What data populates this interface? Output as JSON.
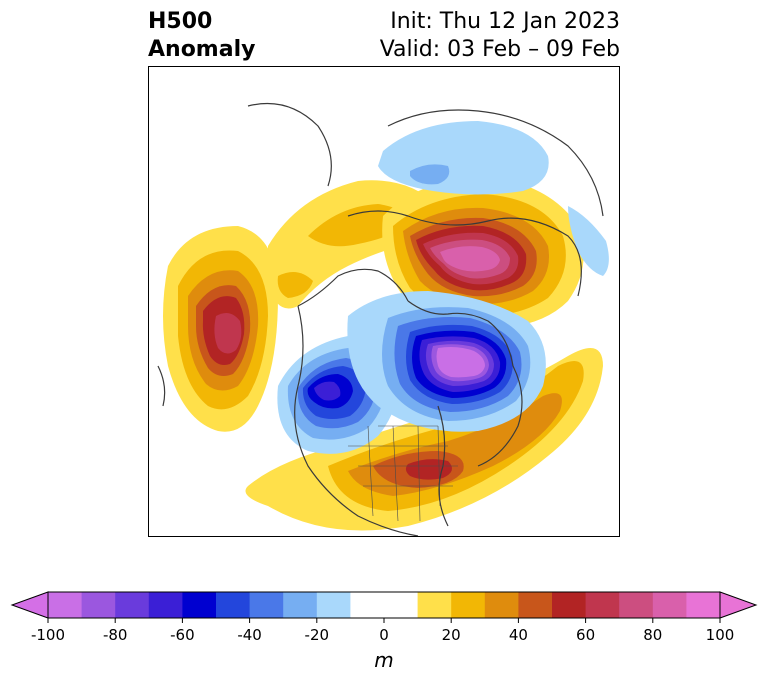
{
  "header": {
    "title_line1": "H500",
    "title_line2": "Anomaly",
    "init_label": "Init: Thu 12 Jan 2023",
    "valid_label": "Valid: 03 Feb – 09 Feb"
  },
  "colorbar": {
    "unit": "m",
    "min": -100,
    "max": 100,
    "ticks": [
      "-100",
      "-80",
      "-60",
      "-40",
      "-20",
      "0",
      "20",
      "40",
      "60",
      "80",
      "100"
    ],
    "tick_values": [
      -100,
      -80,
      -60,
      -40,
      -20,
      0,
      20,
      40,
      60,
      80,
      100
    ],
    "bins": [
      {
        "from": -100,
        "to": -90,
        "color": "#c96fe6"
      },
      {
        "from": -90,
        "to": -80,
        "color": "#9b57df"
      },
      {
        "from": -80,
        "to": -70,
        "color": "#6a3bdc"
      },
      {
        "from": -70,
        "to": -60,
        "color": "#3b1fd6"
      },
      {
        "from": -60,
        "to": -50,
        "color": "#0000d0"
      },
      {
        "from": -50,
        "to": -40,
        "color": "#2346dc"
      },
      {
        "from": -40,
        "to": -30,
        "color": "#4a78e8"
      },
      {
        "from": -30,
        "to": -20,
        "color": "#76aef2"
      },
      {
        "from": -20,
        "to": -10,
        "color": "#a9d8fb"
      },
      {
        "from": -10,
        "to": 10,
        "color": "#ffffff"
      },
      {
        "from": 10,
        "to": 20,
        "color": "#ffe04a"
      },
      {
        "from": 20,
        "to": 30,
        "color": "#f2b705"
      },
      {
        "from": 30,
        "to": 40,
        "color": "#df8c0d"
      },
      {
        "from": 40,
        "to": 50,
        "color": "#c8561b"
      },
      {
        "from": 50,
        "to": 60,
        "color": "#b22424"
      },
      {
        "from": 60,
        "to": 70,
        "color": "#c0364e"
      },
      {
        "from": 70,
        "to": 80,
        "color": "#cc4e80"
      },
      {
        "from": 80,
        "to": 90,
        "color": "#d960ab"
      },
      {
        "from": 90,
        "to": 100,
        "color": "#e873d6"
      }
    ],
    "under_color": "#d46fe6",
    "over_color": "#e873d6"
  },
  "map": {
    "anomalies": [
      {
        "name": "pacific-ridge",
        "levels": [
          10,
          20,
          30,
          40,
          50,
          60,
          70
        ]
      },
      {
        "name": "north-pacific-arctic-ridge",
        "levels": [
          10,
          20
        ]
      },
      {
        "name": "siberia-low",
        "levels": [
          -10,
          -20,
          -30
        ]
      },
      {
        "name": "eurasian-arctic-high",
        "levels": [
          10,
          20,
          30,
          40,
          50,
          60,
          70,
          80,
          90
        ]
      },
      {
        "name": "hudson-bay-low",
        "levels": [
          -10,
          -20,
          -30,
          -40,
          -50,
          -60,
          -70,
          -80,
          -90,
          -100
        ]
      },
      {
        "name": "west-canada-low",
        "levels": [
          -10,
          -20,
          -30,
          -40,
          -50,
          -60
        ]
      },
      {
        "name": "eastern-us-atlantic-ridge",
        "levels": [
          10,
          20,
          30,
          40,
          50,
          60
        ]
      },
      {
        "name": "east-asia-low",
        "levels": [
          -10
        ]
      },
      {
        "name": "atlantic-ridge",
        "levels": [
          10,
          20
        ]
      }
    ]
  }
}
